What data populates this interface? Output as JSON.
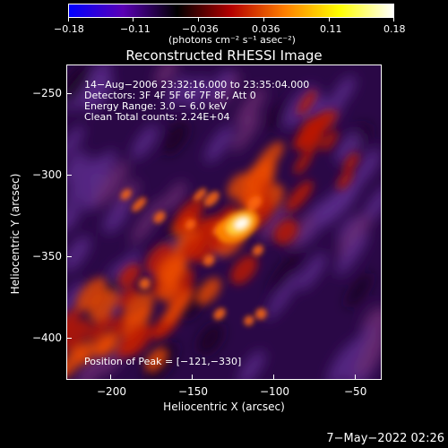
{
  "title": "Reconstructed RHESSI Image",
  "colorbar": {
    "ticks": [
      "−0.18",
      "−0.11",
      "−0.036",
      "0.036",
      "0.11",
      "0.18"
    ],
    "unit_label": "(photons cm⁻² s⁻¹ asec⁻²)",
    "colors": [
      "#0000ff",
      "#5a00b4",
      "#000000",
      "#b40000",
      "#ff8000",
      "#ffff00",
      "#ffffff"
    ]
  },
  "annotations": {
    "time_range": "14−Aug−2006 23:32:16.000 to 23:35:04.000",
    "detectors": "Detectors: 3F 4F 5F 6F 7F 8F, Att 0",
    "energy_range": "Energy Range: 3.0 − 6.0 keV",
    "clean_counts": "Clean     Total counts: 2.24E+04",
    "peak_position": "Position of Peak = [−121,−330]"
  },
  "axes": {
    "xlabel": "Heliocentric X (arcsec)",
    "ylabel": "Heliocentric Y (arcsec)",
    "x_ticks": [
      "−200",
      "−150",
      "−100",
      "−50"
    ],
    "y_ticks": [
      "−250",
      "−300",
      "−350",
      "−400"
    ],
    "x_range": [
      -226,
      -33
    ],
    "y_range": [
      -424,
      -231
    ]
  },
  "peak": {
    "x": -121,
    "y": -330
  },
  "timestamp": "7−May−2022 02:26"
}
